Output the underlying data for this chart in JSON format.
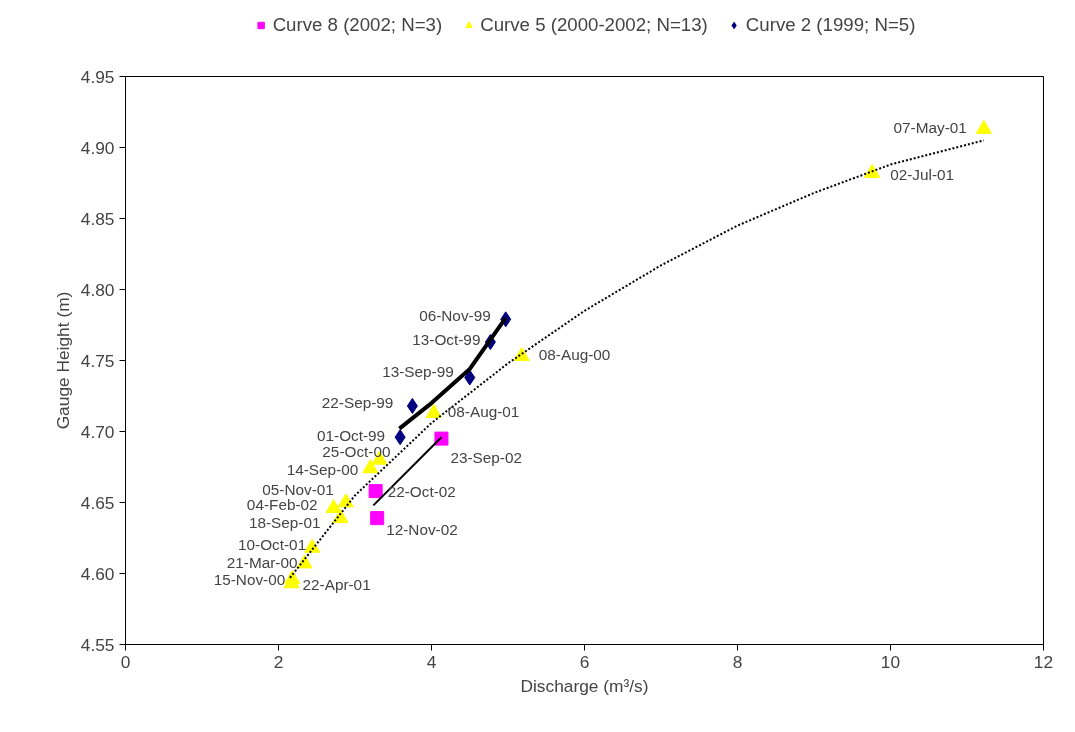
{
  "chart_data": {
    "type": "scatter",
    "xlabel": "Discharge (m³/s)",
    "ylabel": "Gauge Height (m)",
    "xlim": [
      0,
      12
    ],
    "xticks": [
      0,
      2,
      4,
      6,
      8,
      10,
      12
    ],
    "ylim": [
      4.55,
      4.95
    ],
    "yticks": [
      {
        "value": 4.55,
        "label": "4.55"
      },
      {
        "value": 4.6,
        "label": "4.60"
      },
      {
        "value": 4.65,
        "label": "4.65"
      },
      {
        "value": 4.7,
        "label": "4.70"
      },
      {
        "value": 4.75,
        "label": "4.75"
      },
      {
        "value": 4.8,
        "label": "4.80"
      },
      {
        "value": 4.85,
        "label": "4.85"
      },
      {
        "value": 4.9,
        "label": "4.90"
      },
      {
        "value": 4.95,
        "label": "4.95"
      }
    ],
    "grid": false,
    "legend": "top",
    "series": [
      {
        "name": "Curve 8 (2002; N=3)",
        "color": "#ff00ff",
        "marker": "square",
        "x": [
          4.13,
          3.27,
          3.29
        ],
        "values": [
          4.695,
          4.658,
          4.639
        ]
      },
      {
        "name": "Curve 5 (2000-2002; N=13)",
        "color": "#ffff00",
        "marker": "triangle",
        "x": [
          11.22,
          9.76,
          5.18,
          4.03,
          3.32,
          3.2,
          2.88,
          2.72,
          2.81,
          2.44,
          2.34,
          2.18,
          2.17
        ],
        "values": [
          4.913,
          4.882,
          4.753,
          4.713,
          4.68,
          4.674,
          4.65,
          4.646,
          4.639,
          4.618,
          4.607,
          4.596,
          4.593
        ]
      },
      {
        "name": "Curve 2 (1999; N=5)",
        "color": "#000080",
        "marker": "diamond",
        "x": [
          4.97,
          4.77,
          4.5,
          3.75,
          3.59
        ],
        "values": [
          4.779,
          4.763,
          4.738,
          4.718,
          4.696
        ]
      },
      {
        "type": "line",
        "color": "#000000",
        "line_style": "dotted",
        "x": [
          2.15,
          3,
          4,
          5,
          6,
          7,
          8,
          9,
          10,
          11.22
        ],
        "values": [
          4.597,
          4.655,
          4.706,
          4.748,
          4.785,
          4.817,
          4.845,
          4.868,
          4.888,
          4.905
        ]
      },
      {
        "type": "line",
        "color": "#000000",
        "line_style": "solid",
        "x": [
          3.58,
          4.0,
          4.5,
          4.97
        ],
        "values": [
          4.702,
          4.72,
          4.744,
          4.78
        ]
      },
      {
        "type": "line",
        "color": "#000000",
        "line_style": "solid",
        "x": [
          3.24,
          4.13
        ],
        "values": [
          4.648,
          4.696
        ]
      }
    ],
    "annotations": [
      {
        "text": "23-Sep-02",
        "x": 4.13,
        "y": 4.695
      },
      {
        "text": "22-Oct-02",
        "x": 3.27,
        "y": 4.658
      },
      {
        "text": "12-Nov-02",
        "x": 3.29,
        "y": 4.639
      },
      {
        "text": "06-Nov-99",
        "x": 4.97,
        "y": 4.779
      },
      {
        "text": "13-Oct-99",
        "x": 4.77,
        "y": 4.763
      },
      {
        "text": "13-Sep-99",
        "x": 4.5,
        "y": 4.738
      },
      {
        "text": "22-Sep-99",
        "x": 3.75,
        "y": 4.718
      },
      {
        "text": "01-Oct-99",
        "x": 3.59,
        "y": 4.696
      },
      {
        "text": "07-May-01",
        "x": 11.22,
        "y": 4.913
      },
      {
        "text": "02-Jul-01",
        "x": 9.76,
        "y": 4.882
      },
      {
        "text": "08-Aug-00",
        "x": 5.18,
        "y": 4.753
      },
      {
        "text": "08-Aug-01",
        "x": 4.03,
        "y": 4.713
      },
      {
        "text": "25-Oct-00",
        "x": 3.32,
        "y": 4.68
      },
      {
        "text": "14-Sep-00",
        "x": 3.2,
        "y": 4.674
      },
      {
        "text": "05-Nov-01",
        "x": 2.88,
        "y": 4.65
      },
      {
        "text": "04-Feb-02",
        "x": 2.72,
        "y": 4.646
      },
      {
        "text": "18-Sep-01",
        "x": 2.81,
        "y": 4.639
      },
      {
        "text": "10-Oct-01",
        "x": 2.44,
        "y": 4.618
      },
      {
        "text": "21-Mar-00",
        "x": 2.34,
        "y": 4.607
      },
      {
        "text": "15-Nov-00",
        "x": 2.18,
        "y": 4.596
      },
      {
        "text": "22-Apr-01",
        "x": 2.17,
        "y": 4.593
      }
    ]
  }
}
